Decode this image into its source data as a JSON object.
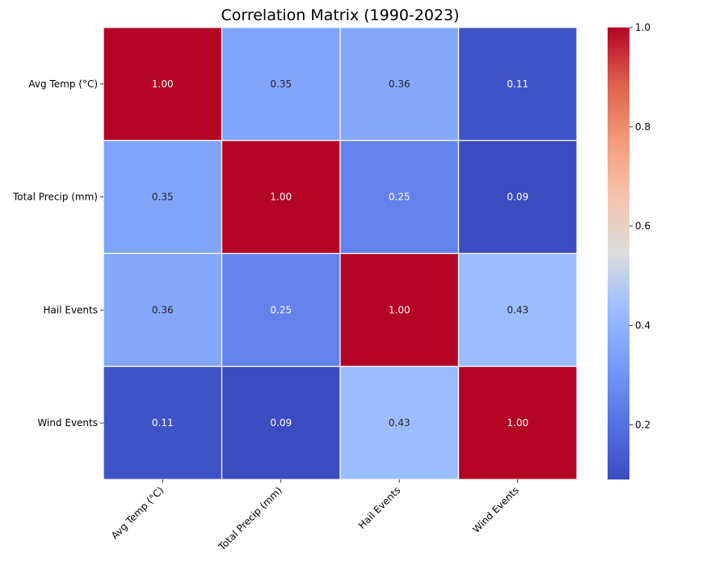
{
  "chart_data": {
    "type": "heatmap",
    "title": "Correlation Matrix (1990-2023)",
    "xlabel": "",
    "ylabel": "",
    "x_labels": [
      "Avg Temp (°C)",
      "Total Precip (mm)",
      "Hail Events",
      "Wind Events"
    ],
    "y_labels": [
      "Avg Temp (°C)",
      "Total Precip (mm)",
      "Hail Events",
      "Wind Events"
    ],
    "values": [
      [
        1.0,
        0.35,
        0.36,
        0.11
      ],
      [
        0.35,
        1.0,
        0.25,
        0.09
      ],
      [
        0.36,
        0.25,
        1.0,
        0.43
      ],
      [
        0.11,
        0.09,
        0.43,
        1.0
      ]
    ],
    "annotation_format": "0.00",
    "colormap": "coolwarm",
    "colorbar": {
      "range": [
        0.09,
        1.0
      ],
      "ticks": [
        0.2,
        0.4,
        0.6,
        0.8,
        1.0
      ],
      "tick_labels": [
        "0.2",
        "0.4",
        "0.6",
        "0.8",
        "1.0"
      ],
      "placement": "right"
    },
    "grid": false,
    "cell_separator_color": "#ffffff"
  }
}
